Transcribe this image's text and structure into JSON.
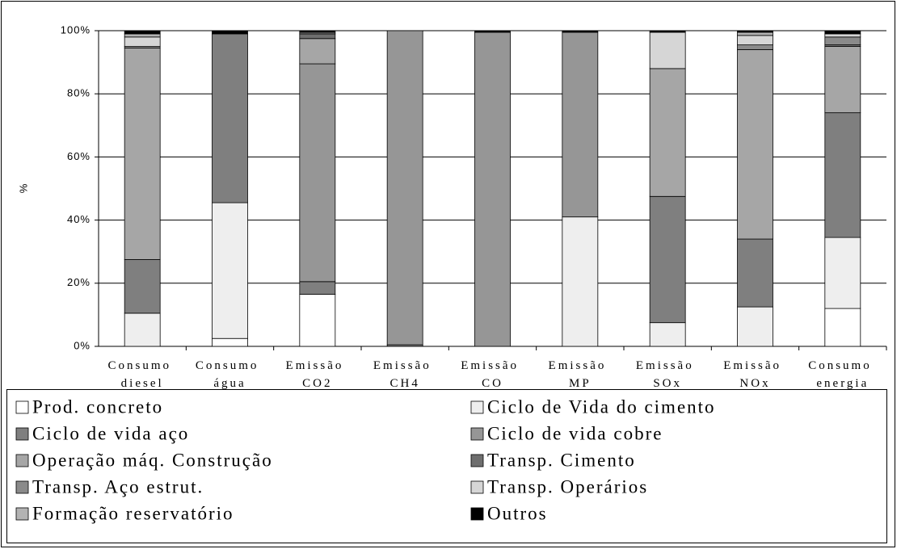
{
  "chart_data": {
    "type": "bar",
    "stacked": true,
    "y_label": "%",
    "categories": [
      "Consumo diesel",
      "Consumo água",
      "Emissão CO2",
      "Emissão CH4",
      "Emissão CO",
      "Emissão MP",
      "Emissão SOx",
      "Emissão NOx",
      "Consumo energia"
    ],
    "series": [
      {
        "name": "Prod. concreto",
        "color": "#ffffff",
        "values": [
          0,
          2.5,
          16.5,
          0,
          0,
          0,
          0,
          0,
          12
        ]
      },
      {
        "name": "Ciclo de Vida do cimento",
        "color": "#eeeeee",
        "values": [
          10.5,
          43,
          0,
          0,
          0,
          41,
          7.5,
          12.5,
          22.5
        ]
      },
      {
        "name": "Ciclo de vida aço",
        "color": "#7f7f7f",
        "values": [
          17,
          53.5,
          4,
          0.5,
          0,
          0,
          40,
          21.5,
          39.5
        ]
      },
      {
        "name": "Ciclo de vida cobre",
        "color": "#969696",
        "values": [
          0,
          0,
          69,
          99.5,
          99.5,
          58.5,
          0,
          0,
          0
        ]
      },
      {
        "name": "Operação máq. Construção",
        "color": "#a6a6a6",
        "values": [
          67,
          0,
          8,
          0,
          0,
          0,
          40.5,
          60,
          21
        ]
      },
      {
        "name": "Transp. Cimento",
        "color": "#6e6e6e",
        "values": [
          0,
          0,
          1.5,
          0,
          0,
          0,
          0,
          0,
          0.5
        ]
      },
      {
        "name": "Transp. Aço estrut.",
        "color": "#8a8a8a",
        "values": [
          0.5,
          0,
          0.5,
          0,
          0,
          0,
          0,
          1.5,
          2.5
        ]
      },
      {
        "name": "Transp. Operários",
        "color": "#d6d6d6",
        "values": [
          3,
          0,
          0,
          0,
          0,
          0,
          11.5,
          3,
          1
        ]
      },
      {
        "name": "Formação reservatório",
        "color": "#b3b3b3",
        "values": [
          1,
          0,
          0,
          0,
          0,
          0,
          0,
          1,
          0
        ]
      },
      {
        "name": "Outros",
        "color": "#000000",
        "values": [
          1,
          1,
          0.5,
          0,
          0.5,
          0.5,
          0.5,
          0.5,
          1
        ]
      }
    ],
    "ylim": [
      0,
      100
    ],
    "yticks": [
      {
        "value": 0,
        "label": "0%"
      },
      {
        "value": 20,
        "label": "20%"
      },
      {
        "value": 40,
        "label": "40%"
      },
      {
        "value": 60,
        "label": "60%"
      },
      {
        "value": 80,
        "label": "80%"
      },
      {
        "value": 100,
        "label": "100%"
      }
    ],
    "grid": true,
    "legend": "bottom"
  }
}
